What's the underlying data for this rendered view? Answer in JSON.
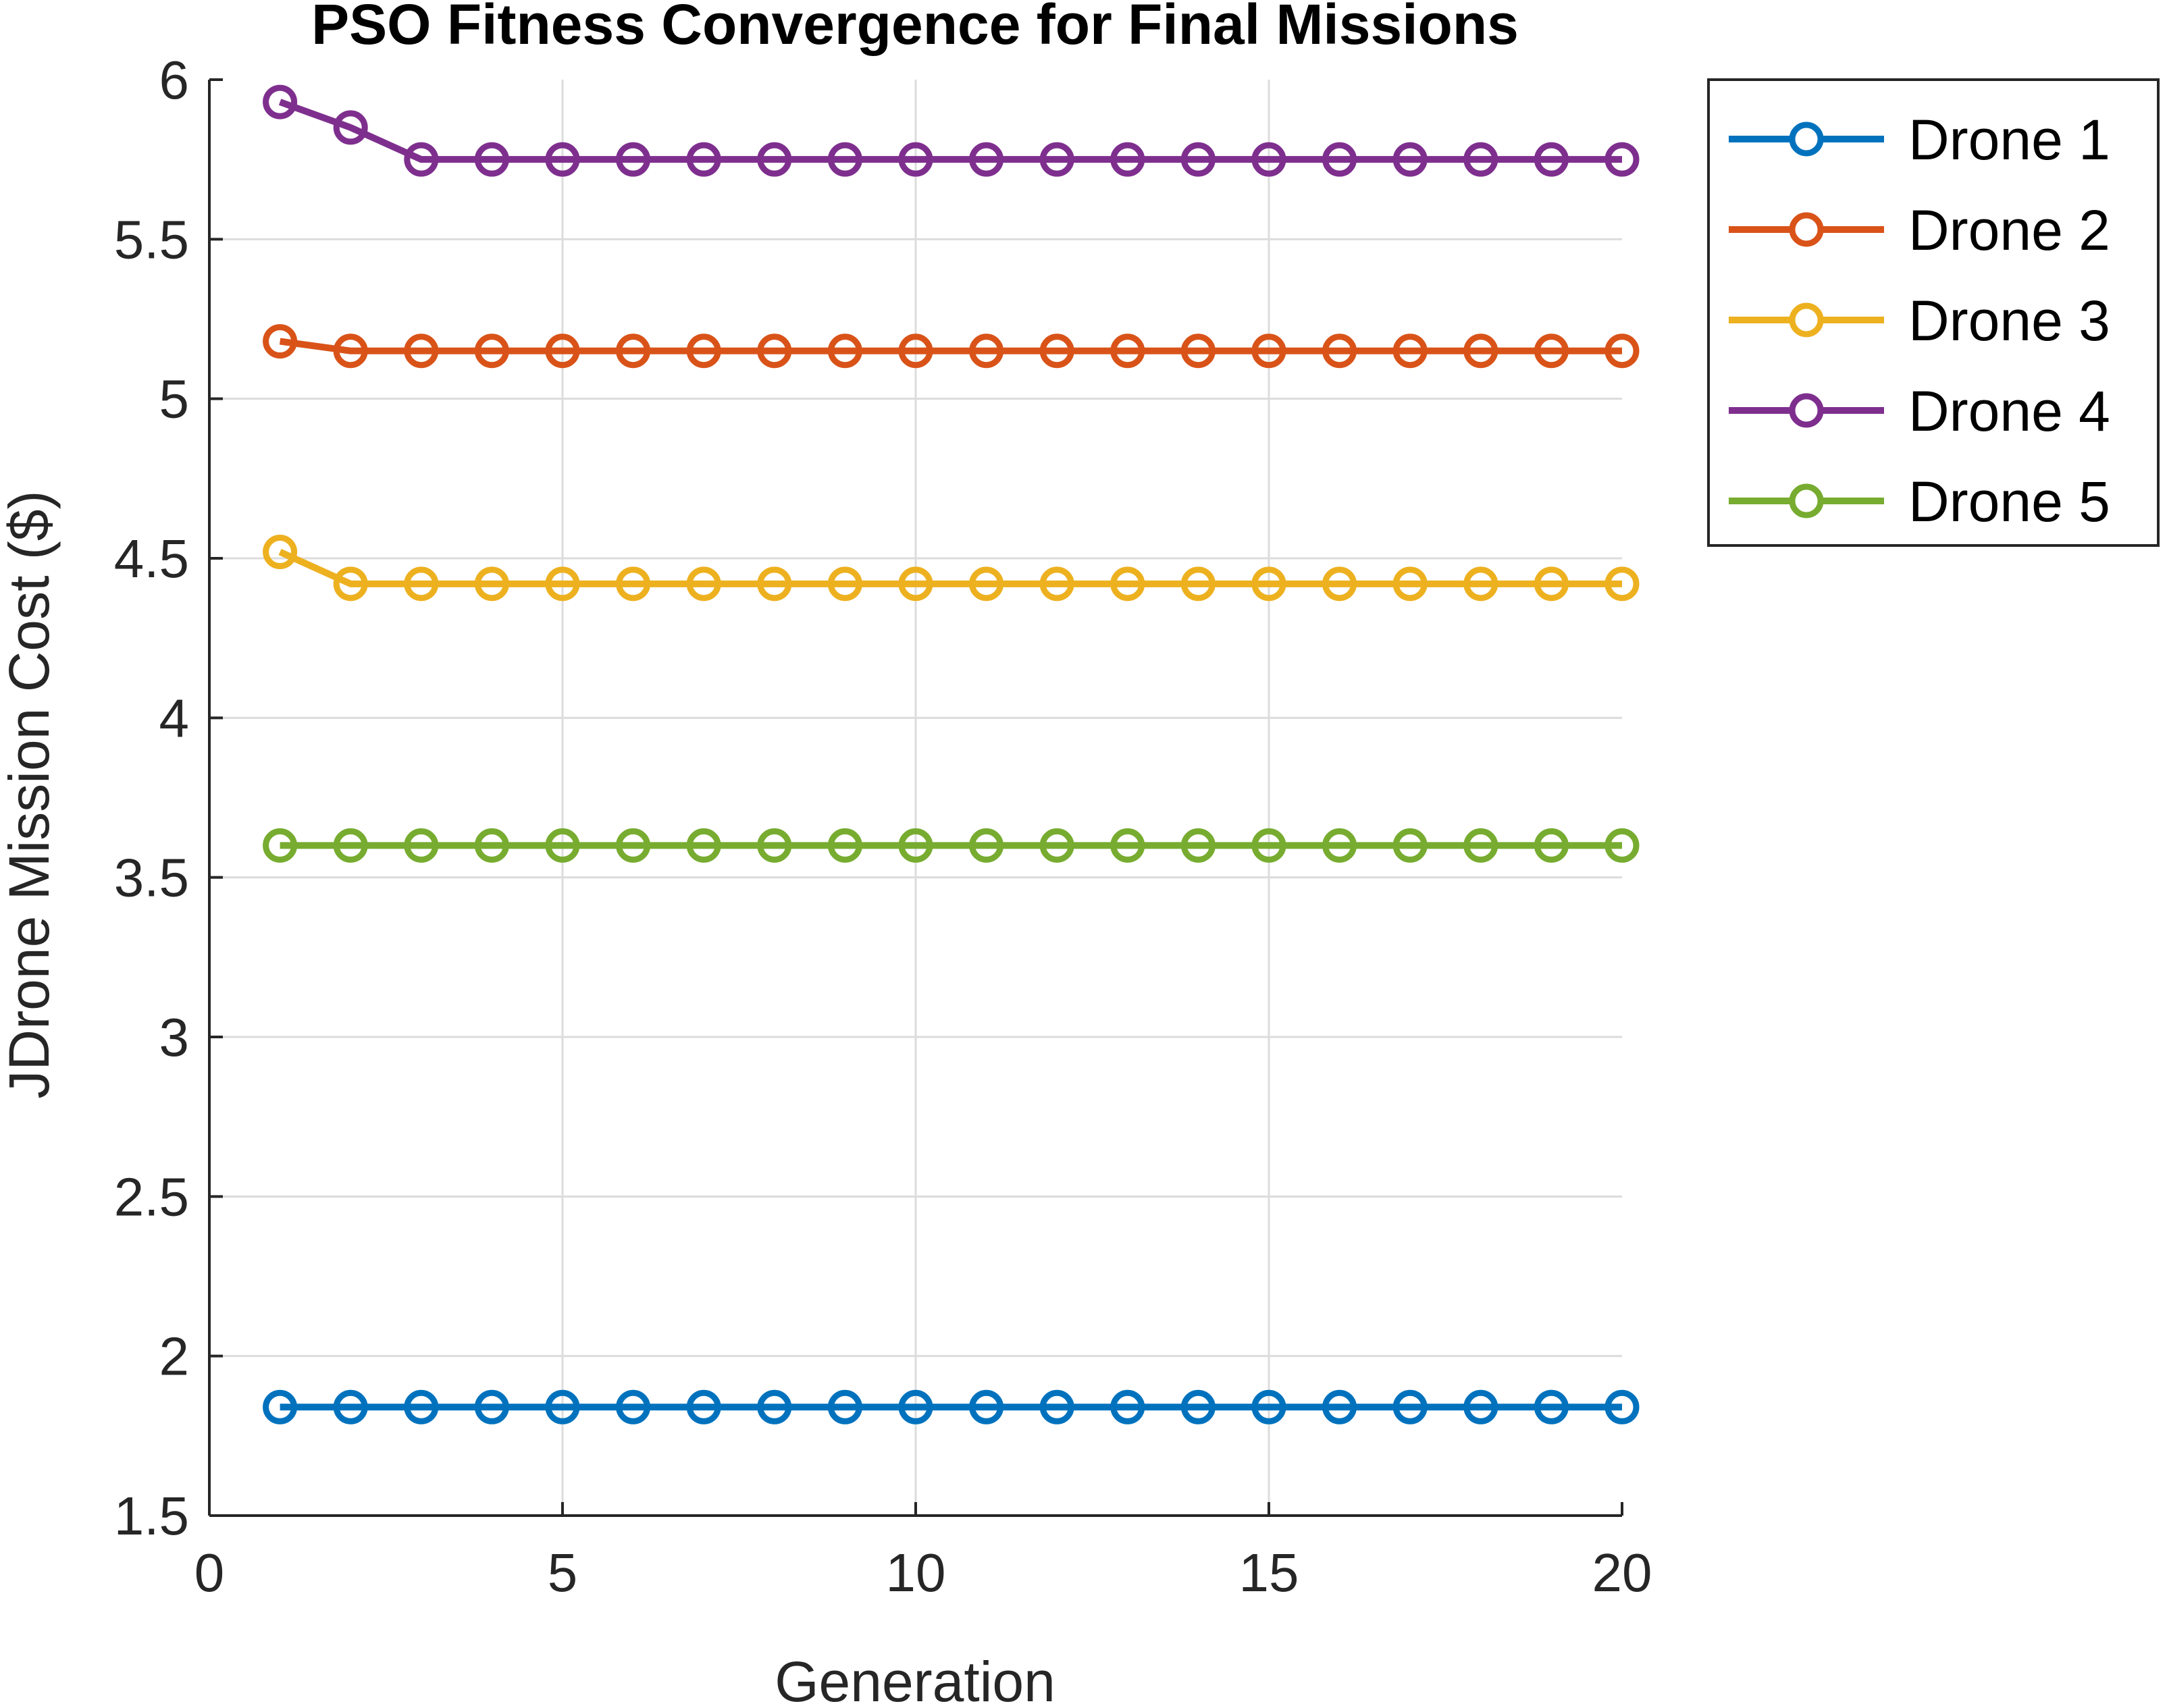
{
  "chart_data": {
    "type": "line",
    "title": "PSO Fitness Convergence for Final Missions",
    "xlabel": "Generation",
    "ylabel": "JDrone Mission Cost ($)",
    "xlim": [
      0,
      20
    ],
    "ylim": [
      1.5,
      6
    ],
    "xticks": [
      0,
      5,
      10,
      15,
      20
    ],
    "xtick_labels": [
      "0",
      "5",
      "10",
      "15",
      "20"
    ],
    "yticks": [
      1.5,
      2,
      2.5,
      3,
      3.5,
      4,
      4.5,
      5,
      5.5,
      6
    ],
    "ytick_labels": [
      "1.5",
      "2",
      "2.5",
      "3",
      "3.5",
      "4",
      "4.5",
      "5",
      "5.5",
      "6"
    ],
    "grid": true,
    "legend_position": "outside-top-right",
    "marker": "circle-open",
    "x": [
      1,
      2,
      3,
      4,
      5,
      6,
      7,
      8,
      9,
      10,
      11,
      12,
      13,
      14,
      15,
      16,
      17,
      18,
      19,
      20
    ],
    "series": [
      {
        "name": "Drone 1",
        "color": "#0072BD",
        "values": [
          1.84,
          1.84,
          1.84,
          1.84,
          1.84,
          1.84,
          1.84,
          1.84,
          1.84,
          1.84,
          1.84,
          1.84,
          1.84,
          1.84,
          1.84,
          1.84,
          1.84,
          1.84,
          1.84,
          1.84
        ]
      },
      {
        "name": "Drone 2",
        "color": "#D95319",
        "values": [
          5.18,
          5.15,
          5.15,
          5.15,
          5.15,
          5.15,
          5.15,
          5.15,
          5.15,
          5.15,
          5.15,
          5.15,
          5.15,
          5.15,
          5.15,
          5.15,
          5.15,
          5.15,
          5.15,
          5.15
        ]
      },
      {
        "name": "Drone 3",
        "color": "#EDB120",
        "values": [
          4.52,
          4.42,
          4.42,
          4.42,
          4.42,
          4.42,
          4.42,
          4.42,
          4.42,
          4.42,
          4.42,
          4.42,
          4.42,
          4.42,
          4.42,
          4.42,
          4.42,
          4.42,
          4.42,
          4.42
        ]
      },
      {
        "name": "Drone 4",
        "color": "#7E2F8E",
        "values": [
          5.93,
          5.85,
          5.75,
          5.75,
          5.75,
          5.75,
          5.75,
          5.75,
          5.75,
          5.75,
          5.75,
          5.75,
          5.75,
          5.75,
          5.75,
          5.75,
          5.75,
          5.75,
          5.75,
          5.75
        ]
      },
      {
        "name": "Drone 5",
        "color": "#77AC30",
        "values": [
          3.6,
          3.6,
          3.6,
          3.6,
          3.6,
          3.6,
          3.6,
          3.6,
          3.6,
          3.6,
          3.6,
          3.6,
          3.6,
          3.6,
          3.6,
          3.6,
          3.6,
          3.6,
          3.6,
          3.6
        ]
      }
    ]
  }
}
